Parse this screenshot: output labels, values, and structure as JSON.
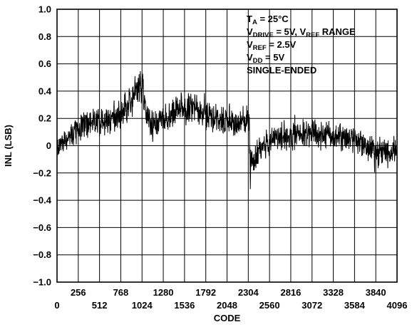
{
  "chart_data": {
    "type": "line",
    "xlabel": "CODE",
    "ylabel": "INL (LSB)",
    "xlim": [
      0,
      4096
    ],
    "ylim": [
      -1.0,
      1.0
    ],
    "grid": true,
    "x_ticks_major": [
      0,
      512,
      1024,
      1536,
      2048,
      2560,
      3072,
      3584,
      4096
    ],
    "x_ticks_minor": [
      256,
      768,
      1280,
      1792,
      2304,
      2816,
      3328,
      3840
    ],
    "x_tick_labels_upper": [
      "256",
      "768",
      "1280",
      "1792",
      "2304",
      "2816",
      "3328",
      "3840"
    ],
    "x_tick_labels_lower": [
      "0",
      "512",
      "1024",
      "1536",
      "2048",
      "2560",
      "3072",
      "3584",
      "4096"
    ],
    "y_ticks": [
      1.0,
      0.8,
      0.6,
      0.4,
      0.2,
      0,
      -0.2,
      -0.4,
      -0.6,
      -0.8,
      -1.0
    ],
    "y_tick_labels": [
      "1.0",
      "0.8",
      "0.6",
      "0.4",
      "0.2",
      "0",
      "−0.2",
      "−0.4",
      "−0.6",
      "−0.8",
      "−1.0"
    ],
    "annotation": {
      "line1": {
        "main": "T",
        "sub": "A",
        "rest": " = 25°C"
      },
      "line2": {
        "main": "V",
        "sub": "DRIVE",
        "rest": " = 5V, V",
        "sub2": "REF",
        "rest2": " RANGE"
      },
      "line3": {
        "main": "V",
        "sub": "REF",
        "rest": " = 2.5V"
      },
      "line4": {
        "main": "V",
        "sub": "DD",
        "rest": " = 5V"
      },
      "line5": "SINGLE-ENDED"
    },
    "series": [
      {
        "color": "#000000",
        "envelope_x": [
          0,
          64,
          128,
          256,
          384,
          512,
          640,
          768,
          896,
          960,
          1024,
          1088,
          1152,
          1280,
          1408,
          1536,
          1664,
          1792,
          1920,
          2048,
          2176,
          2280,
          2296,
          2320,
          2368,
          2432,
          2560,
          2688,
          2816,
          2944,
          3072,
          3200,
          3328,
          3456,
          3584,
          3712,
          3840,
          3968,
          4032,
          4096
        ],
        "envelope_center": [
          -0.02,
          0.02,
          0.06,
          0.12,
          0.16,
          0.18,
          0.2,
          0.24,
          0.32,
          0.4,
          0.42,
          0.2,
          0.16,
          0.18,
          0.24,
          0.28,
          0.28,
          0.22,
          0.2,
          0.18,
          0.16,
          0.2,
          0.2,
          -0.1,
          -0.08,
          -0.04,
          0.02,
          0.06,
          0.08,
          0.1,
          0.08,
          0.08,
          0.06,
          0.06,
          0.04,
          0.0,
          -0.04,
          -0.06,
          -0.04,
          -0.02
        ],
        "envelope_amplitude": [
          0.1,
          0.1,
          0.11,
          0.12,
          0.12,
          0.12,
          0.13,
          0.14,
          0.15,
          0.17,
          0.18,
          0.13,
          0.12,
          0.13,
          0.14,
          0.14,
          0.14,
          0.13,
          0.12,
          0.12,
          0.12,
          0.13,
          0.13,
          0.16,
          0.13,
          0.12,
          0.12,
          0.13,
          0.13,
          0.13,
          0.12,
          0.12,
          0.12,
          0.12,
          0.12,
          0.12,
          0.13,
          0.13,
          0.12,
          0.12
        ],
        "y_max": 0.62,
        "y_min": -0.32
      }
    ]
  }
}
